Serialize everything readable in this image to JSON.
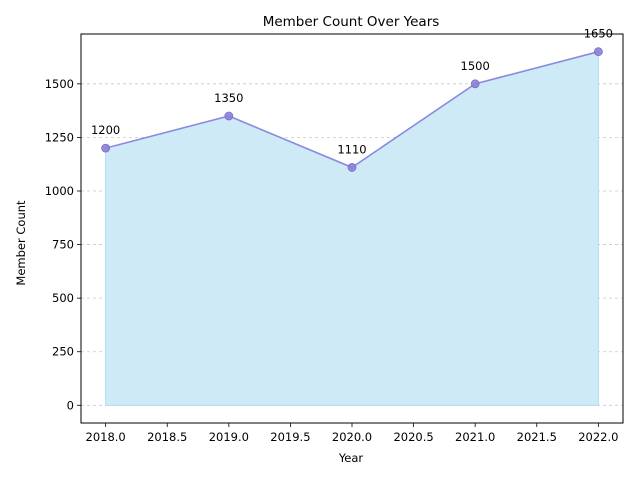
{
  "chart_data": {
    "type": "area",
    "title": "Member Count Over Years",
    "xlabel": "Year",
    "ylabel": "Member Count",
    "x": [
      2018,
      2019,
      2020,
      2021,
      2022
    ],
    "series": [
      {
        "values": [
          1200,
          1350,
          1110,
          1500,
          1650
        ],
        "line_color": "#8a8ade",
        "fill_color": "#cfeaf7",
        "marker_color": "#8a7fd6"
      }
    ],
    "data_labels": [
      "1200",
      "1350",
      "1110",
      "1500",
      "1650"
    ],
    "xlim": [
      1977.8,
      2022.2
    ],
    "ylim": [
      -82.5,
      1732.5
    ],
    "x_ticks": [
      2018.0,
      2018.5,
      2019.0,
      2019.5,
      2020.0,
      2020.5,
      2021.0,
      2021.5,
      2022.0
    ],
    "x_tick_labels": [
      "2018.0",
      "2018.5",
      "2019.0",
      "2019.5",
      "2020.0",
      "2020.5",
      "2021.0",
      "2021.5",
      "2022.0"
    ],
    "y_ticks": [
      0,
      250,
      500,
      750,
      1000,
      1250,
      1500
    ],
    "y_tick_labels": [
      "0",
      "250",
      "500",
      "750",
      "1000",
      "1250",
      "1500"
    ],
    "grid": "y-dashed",
    "legend": "none"
  }
}
